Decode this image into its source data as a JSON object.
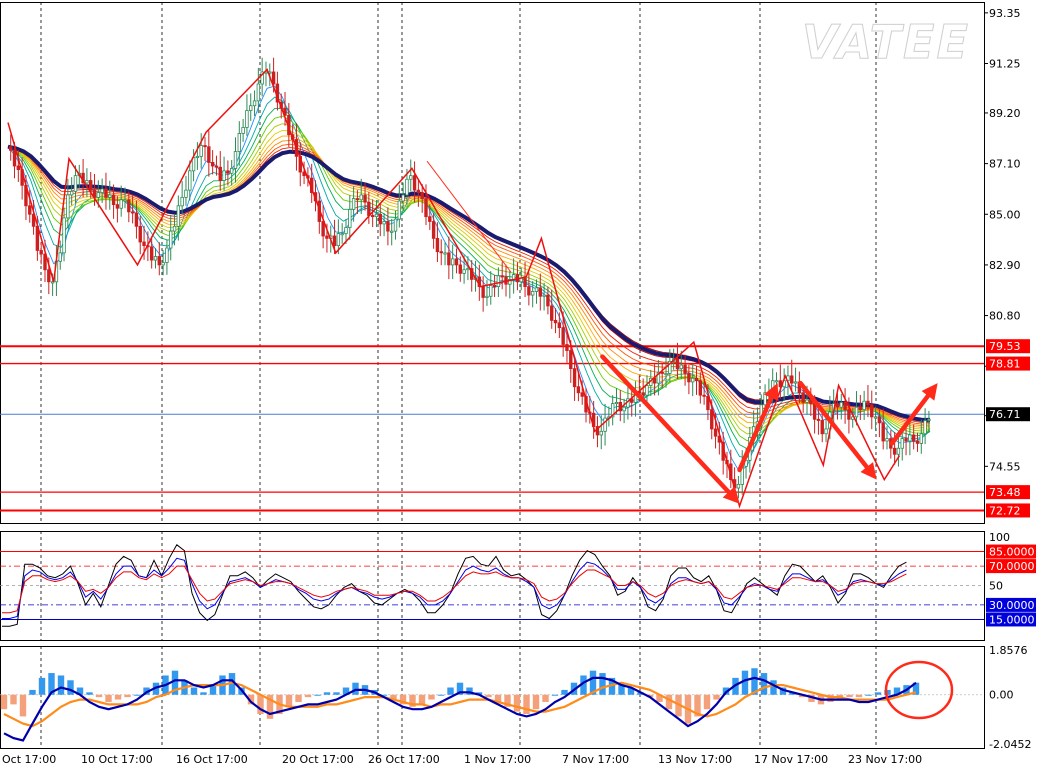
{
  "watermark": "VATEE",
  "main_panel": {
    "price_labels": [
      "93.35",
      "91.25",
      "89.20",
      "87.10",
      "85.00",
      "82.90",
      "80.80",
      "78.70",
      "76.65",
      "74.55"
    ],
    "level_tags": [
      {
        "value": "79.53",
        "style": "red"
      },
      {
        "value": "78.81",
        "style": "red"
      },
      {
        "value": "76.71",
        "style": "dark"
      },
      {
        "value": "73.48",
        "style": "red"
      },
      {
        "value": "72.72",
        "style": "red"
      }
    ]
  },
  "oscillator_panel": {
    "scale_labels": [
      "100",
      "50"
    ],
    "level_tags": [
      {
        "value": "85.0000",
        "style": "red"
      },
      {
        "value": "70.0000",
        "style": "red"
      },
      {
        "value": "30.0000",
        "style": "blue"
      },
      {
        "value": "15.0000",
        "style": "blue"
      }
    ]
  },
  "macd_panel": {
    "scale_labels": [
      "1.8576",
      "0.00",
      "-2.0452"
    ]
  },
  "time_axis": [
    "Oct 17:00",
    "10 Oct 17:00",
    "16 Oct 17:00",
    "20 Oct 17:00",
    "26 Oct 17:00",
    "1 Nov 17:00",
    "7 Nov 17:00",
    "13 Nov 17:00",
    "17 Nov 17:00",
    "23 Nov 17:00"
  ],
  "colors": {
    "bull_candle": "#2e8b57",
    "bear_candle": "#cc2020",
    "slow_ma": "#1a1a6e",
    "level_red": "#ff0000",
    "level_blue": "#0000cc",
    "hist_positive": "#3399ee",
    "hist_negative": "#f4a07a",
    "macd_line": "#0000aa",
    "signal_line": "#ff8c1a",
    "annotation_red": "#ff2a1a"
  },
  "chart_data": {
    "type": "candlestick",
    "price_range": [
      72.2,
      93.8
    ],
    "current_price": 76.71,
    "horizontal_levels": [
      79.53,
      78.81,
      76.71,
      73.48,
      72.72
    ],
    "close_path": [
      [
        0,
        87.8
      ],
      [
        1,
        87.0
      ],
      [
        2,
        86.2
      ],
      [
        3,
        85.0
      ],
      [
        4,
        83.5
      ],
      [
        5,
        82.7
      ],
      [
        6,
        82.2
      ],
      [
        7,
        83.4
      ],
      [
        8,
        85.8
      ],
      [
        9,
        86.6
      ],
      [
        10,
        86.3
      ],
      [
        11,
        86.0
      ],
      [
        12,
        85.9
      ],
      [
        13,
        85.7
      ],
      [
        14,
        85.4
      ],
      [
        15,
        85.6
      ],
      [
        16,
        85.1
      ],
      [
        17,
        84.5
      ],
      [
        18,
        83.7
      ],
      [
        19,
        83.1
      ],
      [
        20,
        82.9
      ],
      [
        21,
        83.6
      ],
      [
        22,
        84.5
      ],
      [
        23,
        85.7
      ],
      [
        24,
        86.8
      ],
      [
        25,
        87.4
      ],
      [
        26,
        87.8
      ],
      [
        27,
        87.0
      ],
      [
        28,
        86.4
      ],
      [
        29,
        86.7
      ],
      [
        30,
        87.6
      ],
      [
        31,
        88.6
      ],
      [
        32,
        89.5
      ],
      [
        33,
        90.4
      ],
      [
        34,
        90.9
      ],
      [
        35,
        90.4
      ],
      [
        36,
        89.4
      ],
      [
        37,
        88.3
      ],
      [
        38,
        87.4
      ],
      [
        39,
        86.6
      ],
      [
        40,
        85.9
      ],
      [
        41,
        84.7
      ],
      [
        42,
        84.0
      ],
      [
        43,
        83.7
      ],
      [
        44,
        84.2
      ],
      [
        45,
        85.2
      ],
      [
        46,
        85.6
      ],
      [
        47,
        85.5
      ],
      [
        48,
        84.9
      ],
      [
        49,
        84.6
      ],
      [
        50,
        84.3
      ],
      [
        51,
        84.8
      ],
      [
        52,
        85.8
      ],
      [
        53,
        86.6
      ],
      [
        54,
        85.9
      ],
      [
        55,
        84.9
      ],
      [
        56,
        84.0
      ],
      [
        57,
        83.4
      ],
      [
        58,
        82.9
      ],
      [
        59,
        82.9
      ],
      [
        60,
        82.7
      ],
      [
        61,
        82.3
      ],
      [
        62,
        82.0
      ],
      [
        63,
        81.6
      ],
      [
        64,
        82.0
      ],
      [
        65,
        82.4
      ],
      [
        66,
        82.3
      ],
      [
        67,
        82.2
      ],
      [
        68,
        82.0
      ],
      [
        69,
        81.8
      ],
      [
        70,
        81.6
      ],
      [
        71,
        81.2
      ],
      [
        72,
        80.5
      ],
      [
        73,
        79.6
      ],
      [
        74,
        78.6
      ],
      [
        75,
        77.6
      ],
      [
        76,
        76.8
      ],
      [
        77,
        76.2
      ],
      [
        78,
        76.0
      ],
      [
        79,
        76.6
      ],
      [
        80,
        77.2
      ],
      [
        81,
        77.0
      ],
      [
        82,
        77.2
      ],
      [
        83,
        77.6
      ],
      [
        84,
        77.9
      ],
      [
        85,
        78.0
      ],
      [
        86,
        78.4
      ],
      [
        87,
        78.9
      ],
      [
        88,
        78.6
      ],
      [
        89,
        78.4
      ],
      [
        90,
        78.2
      ],
      [
        91,
        77.5
      ],
      [
        92,
        76.9
      ],
      [
        93,
        75.8
      ],
      [
        94,
        74.8
      ],
      [
        95,
        74.0
      ],
      [
        96,
        73.8
      ],
      [
        97,
        74.8
      ],
      [
        98,
        76.2
      ],
      [
        99,
        77.1
      ],
      [
        100,
        77.6
      ],
      [
        101,
        78.1
      ],
      [
        102,
        78.1
      ],
      [
        103,
        78.0
      ],
      [
        104,
        77.6
      ],
      [
        105,
        77.3
      ],
      [
        106,
        76.5
      ],
      [
        107,
        75.9
      ],
      [
        108,
        76.8
      ],
      [
        109,
        77.0
      ],
      [
        110,
        76.9
      ],
      [
        111,
        76.6
      ],
      [
        112,
        76.9
      ],
      [
        113,
        77.1
      ],
      [
        114,
        76.6
      ],
      [
        115,
        75.6
      ],
      [
        116,
        75.3
      ],
      [
        117,
        75.3
      ],
      [
        118,
        75.6
      ],
      [
        119,
        75.6
      ],
      [
        120,
        75.9
      ],
      [
        121,
        76.5
      ]
    ],
    "zigzag": [
      [
        0,
        88.8
      ],
      [
        6,
        82.2
      ],
      [
        8,
        87.3
      ],
      [
        17,
        82.9
      ],
      [
        26,
        88.4
      ],
      [
        34,
        91.0
      ],
      [
        43,
        83.4
      ],
      [
        53,
        86.9
      ],
      [
        62,
        82.0
      ],
      [
        68,
        82.4
      ],
      [
        70,
        84.0
      ],
      [
        77,
        76.0
      ],
      [
        90,
        79.7
      ],
      [
        96,
        72.9
      ],
      [
        102,
        78.3
      ],
      [
        107,
        74.6
      ],
      [
        109,
        77.9
      ],
      [
        115,
        74.0
      ],
      [
        117,
        75.0
      ]
    ],
    "annotation_arrows": [
      {
        "from": [
          78,
          79.1
        ],
        "to": [
          96,
          73.0
        ]
      },
      {
        "from": [
          96,
          74.4
        ],
        "to": [
          101,
          78.0
        ]
      },
      {
        "from": [
          104,
          78.0
        ],
        "to": [
          114,
          74.0
        ]
      },
      {
        "from": [
          116,
          75.5
        ],
        "to": [
          122,
          78.0
        ]
      }
    ],
    "oscillator": {
      "range": [
        0,
        100
      ],
      "levels": [
        85,
        70,
        50,
        30,
        15
      ],
      "black_line": [
        8,
        8,
        10,
        72,
        72,
        68,
        60,
        58,
        62,
        70,
        52,
        30,
        42,
        28,
        50,
        72,
        80,
        76,
        60,
        58,
        76,
        60,
        78,
        92,
        86,
        42,
        22,
        14,
        20,
        40,
        60,
        60,
        64,
        58,
        48,
        56,
        62,
        58,
        54,
        44,
        36,
        28,
        26,
        30,
        40,
        48,
        52,
        44,
        40,
        32,
        30,
        36,
        42,
        46,
        42,
        34,
        22,
        22,
        30,
        42,
        62,
        78,
        80,
        72,
        70,
        80,
        66,
        60,
        62,
        56,
        48,
        20,
        16,
        24,
        40,
        60,
        76,
        86,
        82,
        70,
        60,
        40,
        44,
        58,
        48,
        28,
        24,
        36,
        60,
        68,
        68,
        58,
        54,
        60,
        46,
        24,
        22,
        36,
        52,
        58,
        52,
        46,
        40,
        60,
        72,
        70,
        62,
        54,
        60,
        48,
        32,
        42,
        62,
        62,
        58,
        52,
        48,
        60,
        70,
        74
      ],
      "blue_line": [
        16,
        16,
        18,
        60,
        66,
        64,
        58,
        56,
        58,
        64,
        54,
        38,
        44,
        36,
        48,
        62,
        70,
        70,
        60,
        58,
        66,
        60,
        68,
        78,
        76,
        52,
        34,
        26,
        30,
        42,
        54,
        56,
        58,
        54,
        48,
        52,
        56,
        54,
        52,
        46,
        42,
        36,
        34,
        36,
        42,
        46,
        48,
        44,
        42,
        38,
        36,
        38,
        42,
        44,
        42,
        38,
        30,
        30,
        34,
        42,
        54,
        66,
        70,
        66,
        64,
        68,
        62,
        58,
        58,
        54,
        48,
        30,
        26,
        30,
        40,
        54,
        66,
        74,
        72,
        66,
        58,
        46,
        46,
        54,
        48,
        36,
        32,
        38,
        52,
        58,
        58,
        54,
        52,
        54,
        46,
        32,
        30,
        38,
        48,
        52,
        50,
        46,
        44,
        54,
        62,
        62,
        58,
        54,
        56,
        50,
        40,
        44,
        54,
        56,
        54,
        52,
        50,
        56,
        62,
        66
      ],
      "red_line": [
        22,
        22,
        24,
        54,
        60,
        60,
        56,
        54,
        56,
        60,
        54,
        44,
        46,
        42,
        48,
        58,
        64,
        64,
        58,
        56,
        62,
        58,
        62,
        70,
        70,
        56,
        42,
        34,
        36,
        44,
        52,
        54,
        56,
        54,
        50,
        52,
        54,
        54,
        52,
        48,
        44,
        40,
        38,
        40,
        44,
        46,
        48,
        46,
        44,
        40,
        40,
        40,
        42,
        44,
        44,
        40,
        34,
        34,
        38,
        44,
        52,
        60,
        64,
        62,
        62,
        64,
        60,
        58,
        58,
        56,
        52,
        38,
        34,
        36,
        42,
        52,
        60,
        66,
        66,
        62,
        58,
        50,
        50,
        54,
        50,
        42,
        38,
        42,
        50,
        54,
        56,
        54,
        52,
        54,
        48,
        38,
        36,
        42,
        48,
        50,
        50,
        48,
        46,
        52,
        58,
        58,
        56,
        54,
        54,
        50,
        44,
        46,
        52,
        54,
        54,
        52,
        52,
        54,
        58,
        62
      ]
    },
    "macd": {
      "range": [
        -2.0452,
        1.8576
      ],
      "histogram": [
        -0.6,
        -0.4,
        -0.9,
        0.2,
        0.7,
        0.9,
        0.8,
        0.6,
        0.3,
        0.1,
        -0.1,
        -0.3,
        -0.2,
        -0.1,
        0.0,
        0.3,
        0.5,
        0.8,
        1.0,
        0.6,
        0.3,
        0.1,
        0.4,
        0.8,
        0.9,
        0.3,
        -0.4,
        -0.8,
        -1.0,
        -0.8,
        -0.5,
        -0.3,
        -0.1,
        0.0,
        0.1,
        0.1,
        0.3,
        0.5,
        0.4,
        0.2,
        0.0,
        -0.2,
        -0.4,
        -0.5,
        -0.4,
        -0.2,
        0.0,
        0.3,
        0.5,
        0.3,
        0.1,
        -0.1,
        -0.3,
        -0.5,
        -0.7,
        -0.8,
        -0.6,
        -0.3,
        0.0,
        0.2,
        0.5,
        0.8,
        1.0,
        0.9,
        0.7,
        0.5,
        0.3,
        0.1,
        -0.1,
        -0.3,
        -0.6,
        -0.9,
        -1.2,
        -0.9,
        -0.6,
        -0.2,
        0.3,
        0.7,
        1.0,
        1.1,
        0.9,
        0.6,
        0.3,
        0.1,
        -0.1,
        -0.3,
        -0.4,
        -0.3,
        -0.2,
        -0.1,
        -0.1,
        0.0,
        0.1,
        0.2,
        0.3,
        0.4,
        0.5
      ],
      "macd_line": [
        -1.6,
        -1.8,
        -1.9,
        -1.2,
        -0.5,
        0.1,
        0.3,
        0.2,
        0.0,
        -0.3,
        -0.5,
        -0.6,
        -0.5,
        -0.4,
        -0.2,
        0.1,
        0.3,
        0.4,
        0.6,
        0.6,
        0.4,
        0.3,
        0.4,
        0.6,
        0.6,
        0.2,
        -0.3,
        -0.6,
        -0.8,
        -0.7,
        -0.6,
        -0.5,
        -0.4,
        -0.4,
        -0.3,
        -0.2,
        0.0,
        0.2,
        0.2,
        0.1,
        -0.1,
        -0.3,
        -0.5,
        -0.6,
        -0.6,
        -0.5,
        -0.3,
        -0.1,
        0.1,
        0.1,
        0.0,
        -0.2,
        -0.4,
        -0.6,
        -0.8,
        -0.9,
        -0.8,
        -0.6,
        -0.3,
        -0.1,
        0.2,
        0.5,
        0.7,
        0.7,
        0.6,
        0.4,
        0.3,
        0.1,
        -0.1,
        -0.4,
        -0.7,
        -1.0,
        -1.3,
        -1.1,
        -0.8,
        -0.4,
        0.1,
        0.4,
        0.6,
        0.7,
        0.6,
        0.4,
        0.2,
        0.1,
        0.0,
        -0.1,
        -0.2,
        -0.2,
        -0.2,
        -0.2,
        -0.3,
        -0.3,
        -0.2,
        -0.1,
        0.0,
        0.2,
        0.5
      ],
      "signal_line": [
        -0.8,
        -1.0,
        -1.2,
        -1.3,
        -1.1,
        -0.8,
        -0.5,
        -0.3,
        -0.2,
        -0.2,
        -0.3,
        -0.4,
        -0.4,
        -0.4,
        -0.4,
        -0.3,
        -0.1,
        0.0,
        0.2,
        0.3,
        0.4,
        0.4,
        0.4,
        0.4,
        0.5,
        0.4,
        0.2,
        0.0,
        -0.2,
        -0.4,
        -0.5,
        -0.5,
        -0.5,
        -0.5,
        -0.4,
        -0.4,
        -0.3,
        -0.2,
        -0.1,
        -0.1,
        -0.1,
        -0.2,
        -0.3,
        -0.4,
        -0.4,
        -0.5,
        -0.4,
        -0.4,
        -0.3,
        -0.2,
        -0.2,
        -0.2,
        -0.3,
        -0.4,
        -0.5,
        -0.6,
        -0.7,
        -0.7,
        -0.6,
        -0.5,
        -0.3,
        -0.1,
        0.1,
        0.3,
        0.4,
        0.5,
        0.4,
        0.3,
        0.2,
        0.0,
        -0.2,
        -0.4,
        -0.6,
        -0.8,
        -0.9,
        -0.8,
        -0.6,
        -0.4,
        -0.1,
        0.1,
        0.3,
        0.4,
        0.4,
        0.3,
        0.2,
        0.1,
        0.0,
        -0.1,
        -0.1,
        -0.2,
        -0.2,
        -0.2,
        -0.2,
        -0.2,
        -0.1,
        0.0,
        0.1
      ]
    }
  }
}
